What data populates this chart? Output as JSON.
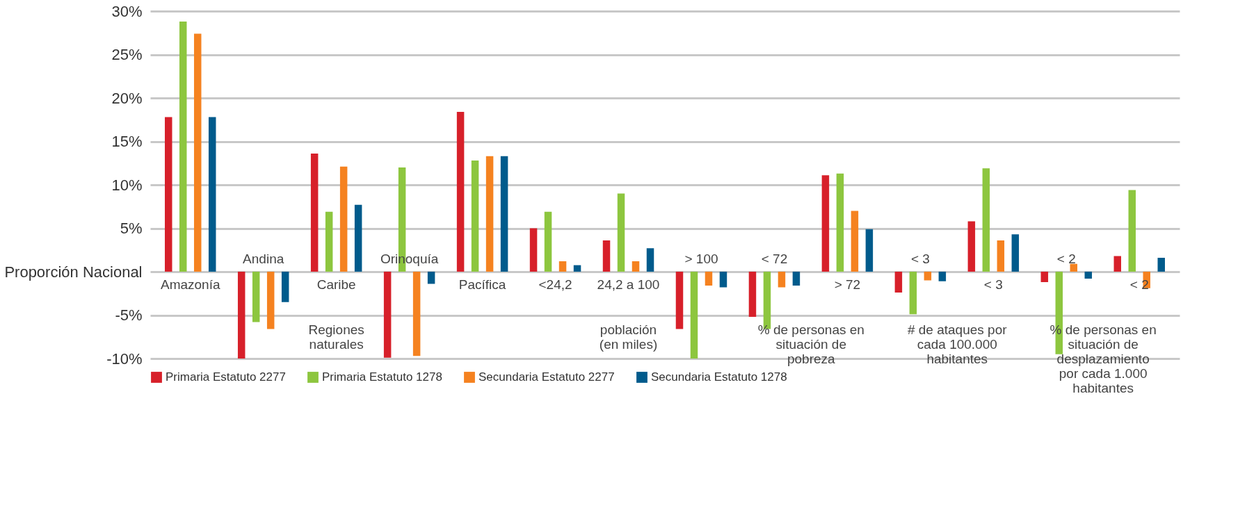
{
  "chart_data": {
    "type": "bar",
    "categories": [
      "Amazonía",
      "Andina",
      "Caribe",
      "Orinoquía",
      "Pacífica",
      "<24,2",
      "24,2 a 100",
      "> 100",
      "< 72",
      "> 72",
      "< 3",
      "< 3",
      "< 2",
      "< 2"
    ],
    "series": [
      {
        "name": "Primaria Estatuto 2277",
        "color": "#d7202a",
        "values": [
          17.8,
          -10,
          13.6,
          -9.9,
          18.4,
          5.0,
          3.6,
          -6.6,
          -5.2,
          11.1,
          -2.4,
          5.8,
          -1.2,
          1.8
        ]
      },
      {
        "name": "Primaria Estatuto 1278",
        "color": "#8dc63f",
        "values": [
          28.8,
          -5.8,
          6.9,
          12.0,
          12.8,
          6.9,
          9.0,
          -10,
          -6.6,
          11.3,
          -4.9,
          11.9,
          -9.5,
          9.4
        ]
      },
      {
        "name": "Secundaria Estatuto 2277",
        "color": "#f58220",
        "values": [
          27.4,
          -6.6,
          12.1,
          -9.7,
          13.3,
          1.2,
          1.2,
          -1.6,
          -1.8,
          7.0,
          -1.0,
          3.6,
          0.9,
          -1.9
        ]
      },
      {
        "name": "Secundaria Estatuto 1278",
        "color": "#005b8c",
        "values": [
          17.8,
          -3.5,
          7.7,
          -1.4,
          13.3,
          0.75,
          2.7,
          -1.8,
          -1.6,
          4.9,
          -1.1,
          4.3,
          -0.8,
          1.6
        ]
      }
    ],
    "ylim": [
      -10,
      30
    ],
    "yticks": [
      {
        "value": -10,
        "label": "-10%"
      },
      {
        "value": -5,
        "label": "-5%"
      },
      {
        "value": 0,
        "label": "Proporción Nacional"
      },
      {
        "value": 5,
        "label": "5%"
      },
      {
        "value": 10,
        "label": "10%"
      },
      {
        "value": 15,
        "label": "15%"
      },
      {
        "value": 20,
        "label": "20%"
      },
      {
        "value": 25,
        "label": "25%"
      },
      {
        "value": 30,
        "label": "30%"
      }
    ],
    "annotations": [
      "Regiones\nnaturales",
      "población\n(en miles)",
      "% de personas en\nsituación de\npobreza",
      "# de ataques por\ncada 100.000\nhabitantes",
      "% de personas en\nsituación de\ndesplazamiento\npor cada 1.000\nhabitantes"
    ],
    "grid": "y",
    "legend": "bottom"
  }
}
